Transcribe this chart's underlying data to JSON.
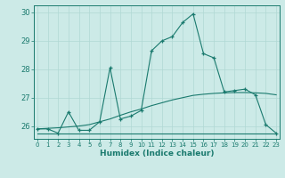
{
  "xlabel": "Humidex (Indice chaleur)",
  "bg_color": "#cceae7",
  "line_color": "#1a7a6e",
  "grid_color": "#b0d8d4",
  "font_color": "#1a7a6e",
  "x_values": [
    0,
    1,
    2,
    3,
    4,
    5,
    6,
    7,
    8,
    9,
    10,
    11,
    12,
    13,
    14,
    15,
    16,
    17,
    18,
    19,
    20,
    21,
    22,
    23
  ],
  "main_line": [
    25.9,
    25.9,
    25.75,
    26.5,
    25.85,
    25.85,
    26.15,
    28.05,
    26.25,
    26.35,
    26.55,
    28.65,
    29.0,
    29.15,
    29.65,
    29.95,
    28.55,
    28.4,
    27.2,
    27.25,
    27.3,
    27.1,
    26.05,
    25.75
  ],
  "diagonal_line": [
    25.9,
    25.92,
    25.94,
    25.97,
    26.0,
    26.05,
    26.15,
    26.25,
    26.38,
    26.5,
    26.6,
    26.72,
    26.82,
    26.92,
    27.0,
    27.08,
    27.12,
    27.15,
    27.17,
    27.18,
    27.18,
    27.17,
    27.15,
    27.1
  ],
  "flat_line": [
    25.75,
    25.75,
    25.75,
    25.75,
    25.75,
    25.75,
    25.75,
    25.75,
    25.75,
    25.75,
    25.75,
    25.75,
    25.75,
    25.75,
    25.75,
    25.75,
    25.75,
    25.75,
    25.75,
    25.75,
    25.75,
    25.75,
    25.75,
    25.75
  ],
  "ylim": [
    25.55,
    30.25
  ],
  "xlim": [
    -0.3,
    23.3
  ],
  "yticks": [
    26,
    27,
    28,
    29,
    30
  ],
  "xticks": [
    0,
    1,
    2,
    3,
    4,
    5,
    6,
    7,
    8,
    9,
    10,
    11,
    12,
    13,
    14,
    15,
    16,
    17,
    18,
    19,
    20,
    21,
    22,
    23
  ]
}
